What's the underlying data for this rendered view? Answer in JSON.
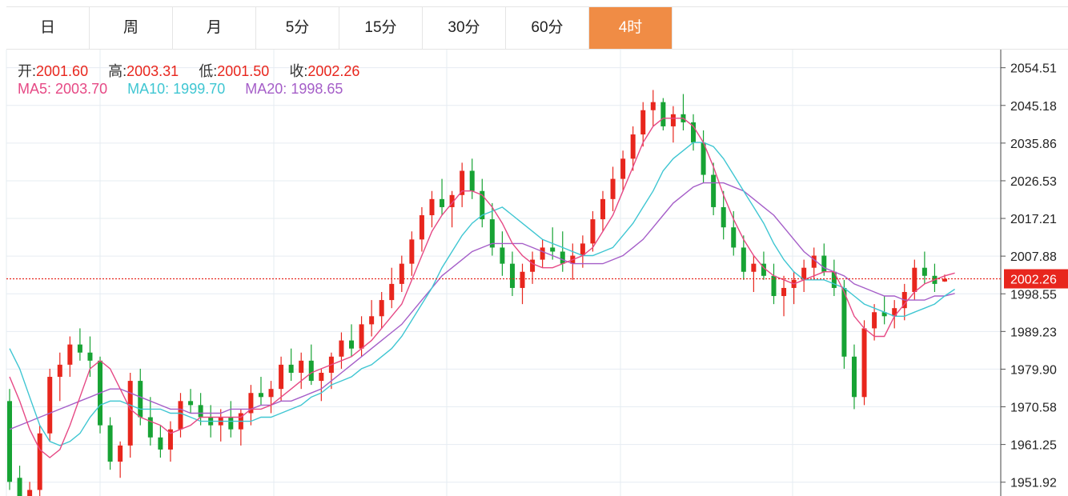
{
  "tabs": [
    "日",
    "周",
    "月",
    "5分",
    "15分",
    "30分",
    "60分",
    "4时"
  ],
  "active_tab": "4时",
  "ohlc": {
    "open_label": "开:",
    "open": "2001.60",
    "high_label": "高:",
    "high": "2003.31",
    "low_label": "低:",
    "low": "2001.50",
    "close_label": "收:",
    "close": "2002.26"
  },
  "ma": {
    "ma5_label": "MA5:",
    "ma5": "2003.70",
    "ma10_label": "MA10:",
    "ma10": "1999.70",
    "ma20_label": "MA20:",
    "ma20": "1998.65"
  },
  "colors": {
    "up": "#e8261d",
    "down": "#17a334",
    "ma5": "#e64985",
    "ma10": "#3fc6d2",
    "ma20": "#a55ec8",
    "grid": "#e6ecf2",
    "active_tab": "#f08c45"
  },
  "chart_data": {
    "type": "candlestick",
    "y_ticks": [
      "2054.51",
      "2045.18",
      "2035.86",
      "2026.53",
      "2017.21",
      "2007.88",
      "1998.55",
      "1989.23",
      "1979.90",
      "1970.58",
      "1961.25",
      "1951.92"
    ],
    "ylim": [
      1948.5,
      2059.0
    ],
    "current_price": "2002.26",
    "grid": true,
    "candles": [
      [
        1972,
        1975,
        1950,
        1952
      ],
      [
        1953,
        1956,
        1946,
        1948
      ],
      [
        1946,
        1952,
        1944,
        1950
      ],
      [
        1950,
        1966,
        1948,
        1964
      ],
      [
        1964,
        1980,
        1962,
        1978
      ],
      [
        1978,
        1984,
        1972,
        1981
      ],
      [
        1981,
        1988,
        1978,
        1986
      ],
      [
        1986,
        1990,
        1982,
        1984
      ],
      [
        1984,
        1988,
        1978,
        1982
      ],
      [
        1982,
        1983,
        1964,
        1966
      ],
      [
        1966,
        1968,
        1955,
        1957
      ],
      [
        1957,
        1962,
        1953,
        1961
      ],
      [
        1961,
        1979,
        1958,
        1977
      ],
      [
        1977,
        1980,
        1966,
        1968
      ],
      [
        1968,
        1973,
        1961,
        1963
      ],
      [
        1963,
        1966,
        1958,
        1960
      ],
      [
        1960,
        1967,
        1957,
        1965
      ],
      [
        1965,
        1974,
        1963,
        1972
      ],
      [
        1972,
        1975,
        1969,
        1971
      ],
      [
        1971,
        1974,
        1966,
        1968
      ],
      [
        1968,
        1971,
        1963,
        1966
      ],
      [
        1966,
        1970,
        1962,
        1968
      ],
      [
        1968,
        1972,
        1963,
        1965
      ],
      [
        1965,
        1970,
        1961,
        1969
      ],
      [
        1969,
        1976,
        1966,
        1974
      ],
      [
        1974,
        1978,
        1971,
        1973
      ],
      [
        1973,
        1977,
        1969,
        1975
      ],
      [
        1975,
        1983,
        1972,
        1981
      ],
      [
        1981,
        1985,
        1977,
        1979
      ],
      [
        1979,
        1984,
        1975,
        1982
      ],
      [
        1982,
        1986,
        1976,
        1977
      ],
      [
        1977,
        1980,
        1972,
        1979
      ],
      [
        1979,
        1984,
        1975,
        1983
      ],
      [
        1983,
        1989,
        1980,
        1987
      ],
      [
        1987,
        1991,
        1983,
        1985
      ],
      [
        1985,
        1993,
        1983,
        1991
      ],
      [
        1991,
        1997,
        1988,
        1993
      ],
      [
        1993,
        1999,
        1990,
        1997
      ],
      [
        1997,
        2005,
        1995,
        2001
      ],
      [
        2001,
        2008,
        1999,
        2006
      ],
      [
        2006,
        2014,
        2003,
        2012
      ],
      [
        2012,
        2020,
        2009,
        2018
      ],
      [
        2018,
        2024,
        2015,
        2022
      ],
      [
        2022,
        2027,
        2018,
        2020
      ],
      [
        2020,
        2024,
        2015,
        2023
      ],
      [
        2023,
        2031,
        2020,
        2029
      ],
      [
        2029,
        2032,
        2022,
        2024
      ],
      [
        2024,
        2027,
        2015,
        2017
      ],
      [
        2017,
        2021,
        2008,
        2010
      ],
      [
        2010,
        2014,
        2003,
        2006
      ],
      [
        2006,
        2009,
        1998,
        2000
      ],
      [
        2000,
        2006,
        1996,
        2004
      ],
      [
        2004,
        2009,
        2001,
        2007
      ],
      [
        2007,
        2012,
        2005,
        2010
      ],
      [
        2010,
        2015,
        2007,
        2009
      ],
      [
        2009,
        2014,
        2004,
        2006
      ],
      [
        2006,
        2011,
        2002,
        2008
      ],
      [
        2008,
        2013,
        2005,
        2011
      ],
      [
        2011,
        2019,
        2009,
        2017
      ],
      [
        2017,
        2024,
        2014,
        2022
      ],
      [
        2022,
        2030,
        2019,
        2027
      ],
      [
        2027,
        2034,
        2024,
        2032
      ],
      [
        2032,
        2040,
        2029,
        2038
      ],
      [
        2038,
        2046,
        2035,
        2044
      ],
      [
        2044,
        2049,
        2040,
        2046
      ],
      [
        2046,
        2047,
        2039,
        2040
      ],
      [
        2040,
        2045,
        2036,
        2043
      ],
      [
        2043,
        2048,
        2039,
        2041
      ],
      [
        2041,
        2043,
        2034,
        2036
      ],
      [
        2036,
        2039,
        2026,
        2028
      ],
      [
        2028,
        2031,
        2018,
        2020
      ],
      [
        2020,
        2024,
        2012,
        2015
      ],
      [
        2015,
        2019,
        2008,
        2010
      ],
      [
        2010,
        2013,
        2002,
        2004
      ],
      [
        2004,
        2008,
        1999,
        2006
      ],
      [
        2006,
        2009,
        2002,
        2003
      ],
      [
        2003,
        2006,
        1996,
        1998
      ],
      [
        1998,
        2003,
        1993,
        2000
      ],
      [
        2000,
        2004,
        1996,
        2002
      ],
      [
        2002,
        2007,
        1999,
        2005
      ],
      [
        2005,
        2010,
        2002,
        2008
      ],
      [
        2008,
        2011,
        2003,
        2004
      ],
      [
        2004,
        2007,
        1998,
        2000
      ],
      [
        2000,
        2002,
        1980,
        1983
      ],
      [
        1983,
        1986,
        1970,
        1973
      ],
      [
        1973,
        1992,
        1971,
        1990
      ],
      [
        1990,
        1996,
        1987,
        1994
      ],
      [
        1994,
        1998,
        1991,
        1993
      ],
      [
        1993,
        1997,
        1990,
        1995
      ],
      [
        1995,
        2001,
        1992,
        1999
      ],
      [
        1999,
        2007,
        1997,
        2005
      ],
      [
        2005,
        2009,
        2001,
        2003
      ],
      [
        2003,
        2006,
        1999,
        2001
      ],
      [
        2001.6,
        2003.31,
        2001.5,
        2002.26
      ]
    ],
    "ma5": [
      1978,
      1972,
      1965,
      1960,
      1958,
      1960,
      1966,
      1973,
      1980,
      1982,
      1980,
      1975,
      1970,
      1968,
      1967,
      1966,
      1964,
      1965,
      1966,
      1968,
      1968,
      1968,
      1968,
      1968,
      1970,
      1970,
      1971,
      1973,
      1975,
      1977,
      1979,
      1980,
      1981,
      1982,
      1983,
      1985,
      1987,
      1990,
      1993,
      1996,
      2002,
      2008,
      2014,
      2018,
      2021,
      2024,
      2024,
      2023,
      2020,
      2016,
      2011,
      2008,
      2006,
      2005,
      2005,
      2006,
      2007,
      2008,
      2010,
      2014,
      2018,
      2024,
      2030,
      2036,
      2040,
      2042,
      2042,
      2042,
      2040,
      2036,
      2030,
      2023,
      2017,
      2012,
      2008,
      2005,
      2003,
      2002,
      2001,
      2002,
      2003,
      2004,
      2004,
      1999,
      1993,
      1990,
      1988,
      1988,
      1993,
      1996,
      1999,
      2001,
      2002,
      2003,
      2003.7
    ],
    "ma10": [
      1985,
      1980,
      1973,
      1966,
      1962,
      1961,
      1962,
      1964,
      1968,
      1971,
      1972,
      1972,
      1971,
      1970,
      1970,
      1970,
      1969,
      1969,
      1968,
      1967,
      1967,
      1967,
      1967,
      1967,
      1967,
      1968,
      1968,
      1969,
      1970,
      1971,
      1973,
      1974,
      1976,
      1977,
      1978,
      1980,
      1981,
      1983,
      1985,
      1988,
      1992,
      1996,
      2000,
      2005,
      2009,
      2013,
      2016,
      2018,
      2019,
      2020,
      2018,
      2016,
      2014,
      2012,
      2011,
      2010,
      2009,
      2008,
      2008,
      2009,
      2010,
      2013,
      2016,
      2020,
      2024,
      2029,
      2032,
      2034,
      2036,
      2036,
      2035,
      2032,
      2028,
      2024,
      2020,
      2016,
      2011,
      2007,
      2004,
      2002,
      2002,
      2002,
      2001,
      2000,
      1998,
      1996,
      1995,
      1994,
      1993,
      1993,
      1994,
      1995,
      1996,
      1998,
      1999.7
    ],
    "ma20": [
      1965,
      1966,
      1967,
      1968,
      1969,
      1970,
      1971,
      1972,
      1973,
      1974,
      1975,
      1975,
      1974,
      1973,
      1972,
      1971,
      1970,
      1970,
      1969,
      1969,
      1969,
      1969,
      1970,
      1970,
      1970,
      1971,
      1971,
      1972,
      1972,
      1973,
      1974,
      1975,
      1977,
      1979,
      1981,
      1983,
      1985,
      1987,
      1989,
      1991,
      1994,
      1997,
      2000,
      2003,
      2005,
      2007,
      2009,
      2010,
      2011,
      2011,
      2011,
      2011,
      2010,
      2009,
      2008,
      2007,
      2006,
      2006,
      2006,
      2006,
      2007,
      2008,
      2010,
      2012,
      2015,
      2018,
      2021,
      2023,
      2025,
      2026,
      2026,
      2026,
      2025,
      2024,
      2022,
      2020,
      2018,
      2015,
      2012,
      2009,
      2007,
      2005,
      2004,
      2003,
      2001,
      2000,
      1999,
      1998,
      1998,
      1997,
      1997,
      1997,
      1998,
      1998,
      1998.65
    ]
  }
}
